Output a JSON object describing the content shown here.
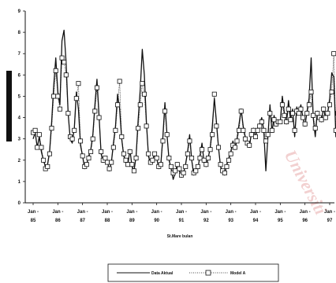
{
  "chart_data": {
    "type": "line",
    "title": "",
    "xlabel": "St.Mare bulan",
    "ylabel": "",
    "ylim": [
      0,
      9
    ],
    "yticks": [
      0,
      1,
      2,
      3,
      4,
      5,
      6,
      7,
      8,
      9
    ],
    "xticks": [
      {
        "top": "Jan -",
        "bottom": "85"
      },
      {
        "top": "Jan -",
        "bottom": "86"
      },
      {
        "top": "Jan -",
        "bottom": "87"
      },
      {
        "top": "Jan -",
        "bottom": "88"
      },
      {
        "top": "Jan -",
        "bottom": "89"
      },
      {
        "top": "Jan -",
        "bottom": "90"
      },
      {
        "top": "Jan -",
        "bottom": "91"
      },
      {
        "top": "Jan -",
        "bottom": "92"
      },
      {
        "top": "Jan -",
        "bottom": "93"
      },
      {
        "top": "Jan -",
        "bottom": "94"
      },
      {
        "top": "Jan -",
        "bottom": "95"
      },
      {
        "top": "Jan -",
        "bottom": "96"
      },
      {
        "top": "Jan -",
        "bottom": "97"
      }
    ],
    "grid": false,
    "legend_placement": "bottom-center",
    "series": [
      {
        "name": "Data Aktual",
        "style": "solid",
        "color": "#111111",
        "values": [
          3.0,
          3.3,
          2.6,
          3.1,
          2.4,
          2.0,
          1.7,
          1.8,
          2.4,
          3.8,
          5.5,
          6.8,
          5.2,
          4.6,
          7.6,
          8.1,
          6.6,
          4.2,
          3.0,
          2.8,
          3.5,
          5.2,
          4.4,
          2.7,
          2.2,
          1.6,
          1.8,
          2.2,
          2.5,
          3.2,
          4.6,
          5.8,
          4.1,
          2.3,
          1.9,
          2.1,
          2.0,
          1.5,
          1.9,
          2.8,
          3.6,
          5.1,
          4.4,
          3.0,
          2.2,
          1.9,
          1.8,
          2.5,
          1.7,
          1.5,
          2.2,
          3.9,
          5.3,
          7.2,
          6.0,
          3.8,
          2.2,
          1.8,
          2.0,
          2.3,
          2.1,
          1.6,
          1.8,
          3.1,
          4.7,
          3.2,
          2.0,
          1.6,
          1.1,
          1.4,
          1.8,
          1.5,
          1.2,
          1.4,
          1.8,
          2.4,
          3.2,
          2.0,
          1.3,
          1.5,
          1.6,
          2.2,
          2.8,
          1.9,
          1.7,
          2.1,
          2.6,
          3.6,
          4.9,
          3.8,
          2.6,
          1.7,
          1.4,
          1.3,
          1.8,
          2.1,
          2.4,
          2.9,
          2.5,
          3.0,
          3.7,
          4.4,
          3.6,
          3.1,
          2.8,
          2.6,
          3.3,
          3.5,
          3.1,
          3.5,
          3.7,
          4.0,
          3.4,
          1.5,
          3.1,
          4.6,
          3.3,
          4.1,
          3.6,
          3.9,
          3.8,
          5.0,
          4.2,
          3.7,
          4.8,
          3.9,
          4.4,
          3.1,
          4.5,
          4.2,
          4.6,
          4.0,
          3.6,
          4.3,
          4.9,
          6.8,
          4.0,
          3.1,
          4.3,
          4.0,
          3.8,
          4.5,
          3.9,
          4.2,
          4.9,
          6.1,
          5.9,
          3.1,
          4.3,
          4.6,
          5.2,
          4.5,
          4.1,
          3.6
        ]
      },
      {
        "name": "Model A",
        "style": "dotted-squares",
        "color": "#111111",
        "values": [
          3.3,
          3.4,
          2.6,
          3.2,
          2.6,
          2.0,
          1.6,
          1.7,
          2.3,
          3.5,
          5.0,
          6.2,
          5.0,
          4.4,
          6.8,
          6.6,
          6.0,
          4.2,
          3.1,
          3.0,
          3.4,
          4.9,
          5.6,
          2.9,
          2.2,
          1.7,
          1.8,
          2.1,
          2.4,
          3.0,
          4.3,
          5.4,
          4.0,
          2.4,
          2.0,
          2.1,
          1.9,
          1.6,
          1.9,
          2.6,
          3.4,
          4.6,
          5.7,
          3.1,
          2.3,
          2.0,
          1.8,
          2.4,
          1.8,
          1.5,
          2.1,
          3.5,
          4.6,
          5.6,
          5.1,
          3.6,
          2.3,
          1.9,
          2.0,
          2.3,
          2.1,
          1.7,
          1.8,
          2.9,
          4.3,
          3.2,
          2.1,
          1.7,
          1.4,
          1.5,
          1.8,
          1.6,
          1.3,
          1.4,
          1.7,
          2.3,
          2.9,
          2.1,
          1.4,
          1.5,
          1.7,
          2.1,
          2.5,
          2.0,
          1.8,
          2.1,
          2.5,
          3.2,
          5.1,
          3.6,
          2.6,
          1.8,
          1.5,
          1.4,
          1.7,
          2.0,
          2.3,
          2.7,
          2.6,
          2.9,
          3.4,
          4.3,
          3.4,
          3.0,
          2.8,
          2.7,
          3.2,
          3.4,
          3.1,
          3.4,
          3.6,
          3.8,
          3.4,
          2.9,
          3.2,
          4.2,
          3.4,
          3.9,
          3.7,
          3.8,
          3.8,
          4.6,
          4.1,
          3.8,
          4.4,
          3.9,
          4.2,
          3.4,
          4.3,
          4.2,
          4.4,
          4.0,
          3.7,
          4.2,
          4.6,
          5.2,
          4.1,
          3.5,
          4.2,
          4.0,
          3.9,
          4.4,
          4.0,
          4.2,
          4.6,
          5.2,
          7.0,
          3.4,
          4.2,
          4.5,
          4.8,
          4.4,
          4.1,
          3.9
        ]
      }
    ]
  },
  "decorations": {
    "ylabel_marker": "black-bar",
    "watermark": "Universiti"
  }
}
